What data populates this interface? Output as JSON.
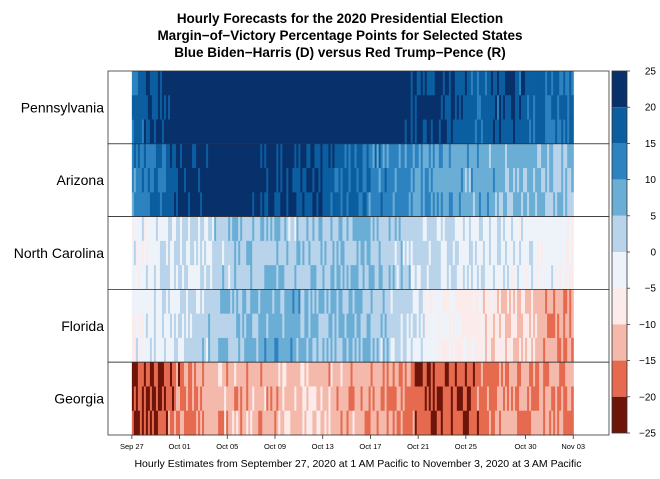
{
  "chart_data": {
    "type": "heatmap",
    "title": [
      "Hourly Forecasts for the 2020 Presidential Election",
      "Margin−of−Victory Percentage Points for Selected States",
      "Blue Biden−Harris (D) versus Red Trump−Pence (R)"
    ],
    "xlabel": "Hourly Estimates from September 27, 2020 at 1 AM Pacific to November 3, 2020 at 3 AM Pacific",
    "x_range": [
      "2020-09-25",
      "2020-11-06"
    ],
    "data_range": [
      "2020-09-27",
      "2020-11-03"
    ],
    "x_ticks": [
      {
        "date": "2020-09-27",
        "label": "Sep 27"
      },
      {
        "date": "2020-10-01",
        "label": "Oct 01"
      },
      {
        "date": "2020-10-05",
        "label": "Oct 05"
      },
      {
        "date": "2020-10-09",
        "label": "Oct 09"
      },
      {
        "date": "2020-10-13",
        "label": "Oct 13"
      },
      {
        "date": "2020-10-17",
        "label": "Oct 17"
      },
      {
        "date": "2020-10-21",
        "label": "Oct 21"
      },
      {
        "date": "2020-10-25",
        "label": "Oct 25"
      },
      {
        "date": "2020-10-30",
        "label": "Oct 30"
      },
      {
        "date": "2020-11-03",
        "label": "Nov 03"
      }
    ],
    "states": [
      {
        "name": "Pennsylvania",
        "series": {
          "dates": [
            "2020-09-27",
            "2020-09-28",
            "2020-09-30",
            "2020-10-02",
            "2020-10-05",
            "2020-10-08",
            "2020-10-12",
            "2020-10-16",
            "2020-10-20",
            "2020-10-23",
            "2020-10-26",
            "2020-10-29",
            "2020-10-31",
            "2020-11-02",
            "2020-11-03"
          ],
          "values": [
            14,
            18,
            22,
            24,
            25,
            25,
            25,
            24,
            23,
            20,
            17,
            19,
            16,
            15,
            14
          ]
        }
      },
      {
        "name": "Arizona",
        "series": {
          "dates": [
            "2020-09-27",
            "2020-09-29",
            "2020-10-01",
            "2020-10-03",
            "2020-10-06",
            "2020-10-09",
            "2020-10-12",
            "2020-10-15",
            "2020-10-18",
            "2020-10-21",
            "2020-10-24",
            "2020-10-27",
            "2020-10-30",
            "2020-11-03"
          ],
          "values": [
            12,
            15,
            20,
            23,
            24,
            21,
            20,
            16,
            12,
            10,
            8,
            7,
            6,
            5
          ]
        }
      },
      {
        "name": "North Carolina",
        "series": {
          "dates": [
            "2020-09-27",
            "2020-09-29",
            "2020-10-02",
            "2020-10-05",
            "2020-10-08",
            "2020-10-11",
            "2020-10-14",
            "2020-10-17",
            "2020-10-20",
            "2020-10-23",
            "2020-10-26",
            "2020-10-29",
            "2020-11-01",
            "2020-11-03"
          ],
          "values": [
            -3,
            -2,
            1,
            3,
            4,
            3,
            4,
            5,
            2,
            1,
            -1,
            -2,
            -3,
            -4
          ]
        }
      },
      {
        "name": "Florida",
        "series": {
          "dates": [
            "2020-09-27",
            "2020-09-30",
            "2020-10-03",
            "2020-10-06",
            "2020-10-09",
            "2020-10-12",
            "2020-10-15",
            "2020-10-18",
            "2020-10-21",
            "2020-10-24",
            "2020-10-27",
            "2020-10-30",
            "2020-11-01",
            "2020-11-03"
          ],
          "values": [
            -3,
            -1,
            2,
            5,
            8,
            6,
            5,
            3,
            -2,
            -5,
            -8,
            -10,
            -14,
            -15
          ]
        }
      },
      {
        "name": "Georgia",
        "series": {
          "dates": [
            "2020-09-27",
            "2020-09-29",
            "2020-10-02",
            "2020-10-05",
            "2020-10-08",
            "2020-10-11",
            "2020-10-14",
            "2020-10-17",
            "2020-10-20",
            "2020-10-23",
            "2020-10-26",
            "2020-10-29",
            "2020-11-01",
            "2020-11-03"
          ],
          "values": [
            -22,
            -20,
            -15,
            -12,
            -13,
            -11,
            -12,
            -14,
            -16,
            -20,
            -18,
            -13,
            -15,
            -17
          ]
        }
      }
    ],
    "colorbar": {
      "ticks": [
        25,
        20,
        15,
        10,
        5,
        0,
        -5,
        -10,
        -15,
        -20,
        -25
      ],
      "bins": [
        {
          "from": 20,
          "to": 25,
          "color": "#08306b"
        },
        {
          "from": 15,
          "to": 20,
          "color": "#0b5fa0"
        },
        {
          "from": 10,
          "to": 15,
          "color": "#2d82c0"
        },
        {
          "from": 5,
          "to": 10,
          "color": "#6aaed6"
        },
        {
          "from": 0,
          "to": 5,
          "color": "#b9d4ea"
        },
        {
          "from": -5,
          "to": 0,
          "color": "#eef3f9"
        },
        {
          "from": -10,
          "to": -5,
          "color": "#fbeceb"
        },
        {
          "from": -15,
          "to": -10,
          "color": "#f4b9ab"
        },
        {
          "from": -20,
          "to": -15,
          "color": "#e56a4f"
        },
        {
          "from": -25,
          "to": -20,
          "color": "#6e1408"
        }
      ]
    },
    "colorbar_position": "right",
    "legend": "none"
  }
}
